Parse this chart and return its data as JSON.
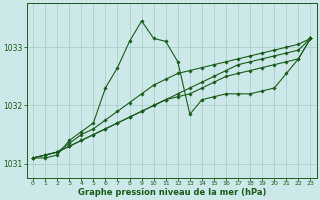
{
  "xlabel": "Graphe pression niveau de la mer (hPa)",
  "bg_color": "#cce8e8",
  "grid_color": "#aad0d0",
  "line_color": "#1a5c1a",
  "ylim": [
    1030.75,
    1033.75
  ],
  "yticks": [
    1031,
    1032,
    1033
  ],
  "xlim": [
    -0.5,
    23.5
  ],
  "xticks": [
    0,
    1,
    2,
    3,
    4,
    5,
    6,
    7,
    8,
    9,
    10,
    11,
    12,
    13,
    14,
    15,
    16,
    17,
    18,
    19,
    20,
    21,
    22,
    23
  ],
  "series1": [
    1031.1,
    1031.1,
    1031.15,
    1031.4,
    1031.55,
    1031.7,
    1032.3,
    1032.65,
    1033.1,
    1033.45,
    1033.15,
    1033.1,
    1032.75,
    1031.85,
    1032.1,
    1032.15,
    1032.2,
    1032.2,
    1032.2,
    1032.25,
    1032.3,
    1032.55,
    1032.8,
    1033.15
  ],
  "series2": [
    1031.1,
    1031.15,
    1031.2,
    1031.35,
    1031.5,
    1031.6,
    1031.75,
    1031.9,
    1032.05,
    1032.2,
    1032.35,
    1032.45,
    1032.55,
    1032.6,
    1032.65,
    1032.7,
    1032.75,
    1032.8,
    1032.85,
    1032.9,
    1032.95,
    1033.0,
    1033.05,
    1033.15
  ],
  "series3": [
    1031.1,
    1031.15,
    1031.2,
    1031.3,
    1031.4,
    1031.5,
    1031.6,
    1031.7,
    1031.8,
    1031.9,
    1032.0,
    1032.1,
    1032.2,
    1032.3,
    1032.4,
    1032.5,
    1032.6,
    1032.7,
    1032.75,
    1032.8,
    1032.85,
    1032.9,
    1032.95,
    1033.15
  ],
  "series4": [
    1031.1,
    1031.15,
    1031.2,
    1031.3,
    1031.4,
    1031.5,
    1031.6,
    1031.7,
    1031.8,
    1031.9,
    1032.0,
    1032.1,
    1032.15,
    1032.2,
    1032.3,
    1032.4,
    1032.5,
    1032.55,
    1032.6,
    1032.65,
    1032.7,
    1032.75,
    1032.8,
    1033.15
  ]
}
